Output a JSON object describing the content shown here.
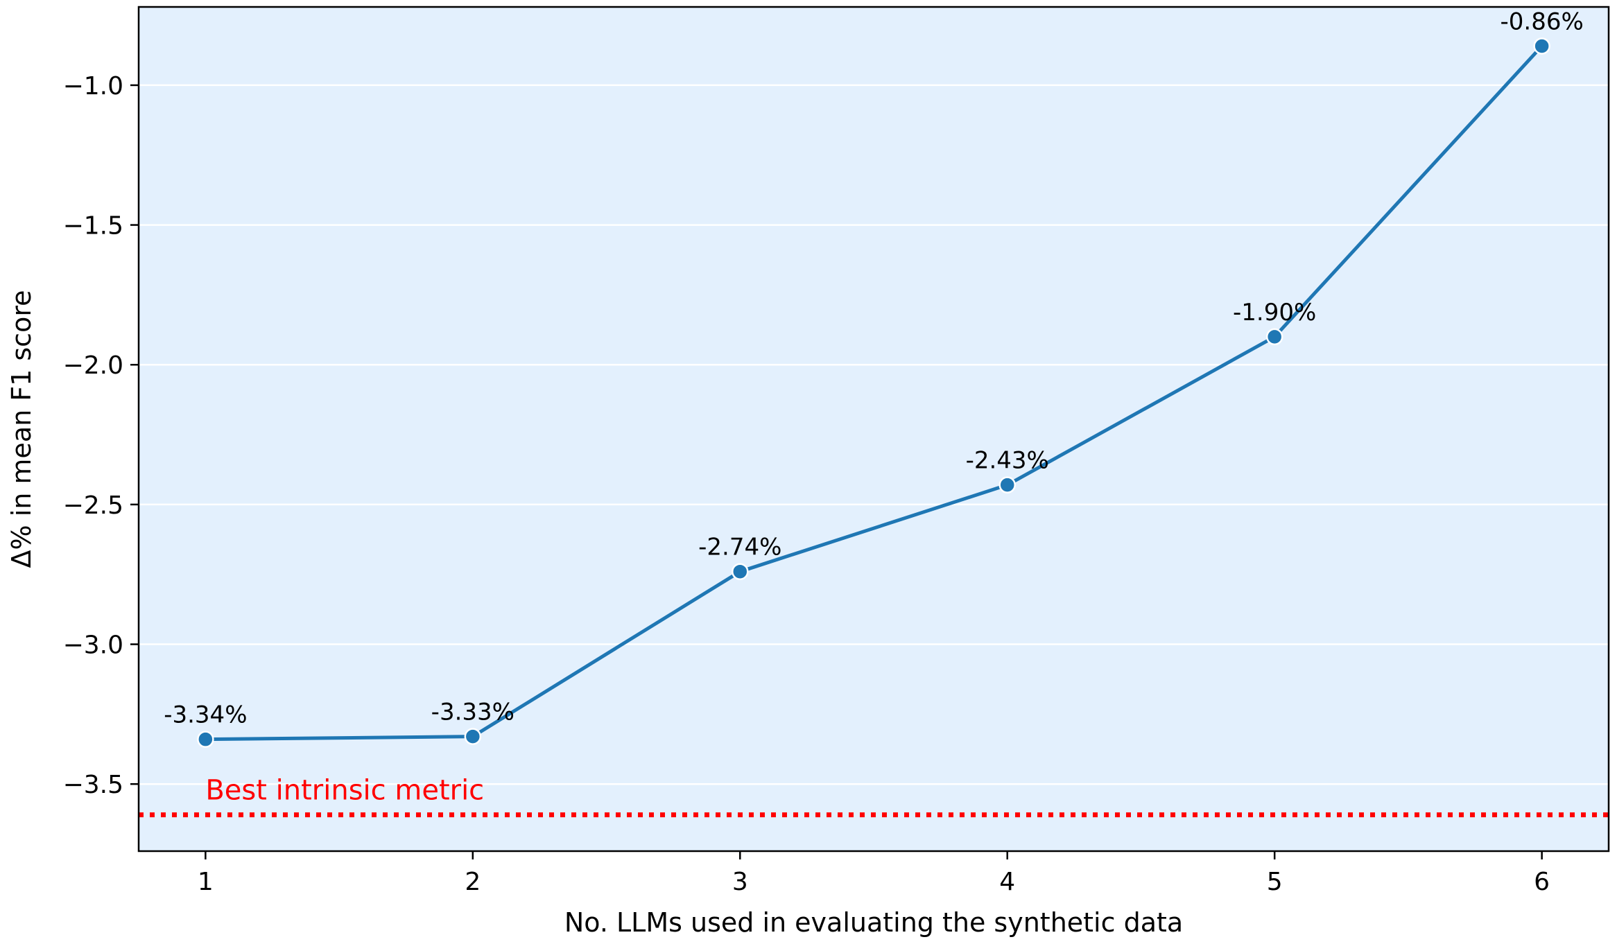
{
  "chart_data": {
    "type": "line",
    "title": "",
    "xlabel": "No. LLMs used in evaluating the synthetic data",
    "ylabel": "Δ% in mean F1 score",
    "x": [
      1,
      2,
      3,
      4,
      5,
      6
    ],
    "xticks": [
      "1",
      "2",
      "3",
      "4",
      "5",
      "6"
    ],
    "xlim": [
      0.75,
      6.25
    ],
    "yticks": [
      "−3.5",
      "−3.0",
      "−2.5",
      "−2.0",
      "−1.5",
      "−1.0"
    ],
    "ytick_values": [
      -3.5,
      -3.0,
      -2.5,
      -2.0,
      -1.5,
      -1.0
    ],
    "ylim": [
      -3.74,
      -0.72
    ],
    "grid": "horizontal",
    "series": [
      {
        "values": [
          -3.34,
          -3.33,
          -2.74,
          -2.43,
          -1.9,
          -0.86
        ],
        "labels": [
          "-3.34%",
          "-3.33%",
          "-2.74%",
          "-2.43%",
          "-1.90%",
          "-0.86%"
        ],
        "color": "#1f77b4"
      }
    ],
    "reference_line": {
      "label": "Best intrinsic metric",
      "value": -3.61,
      "color": "#ff0000",
      "style": "dotted"
    },
    "background_color": "#e3f0fd"
  }
}
